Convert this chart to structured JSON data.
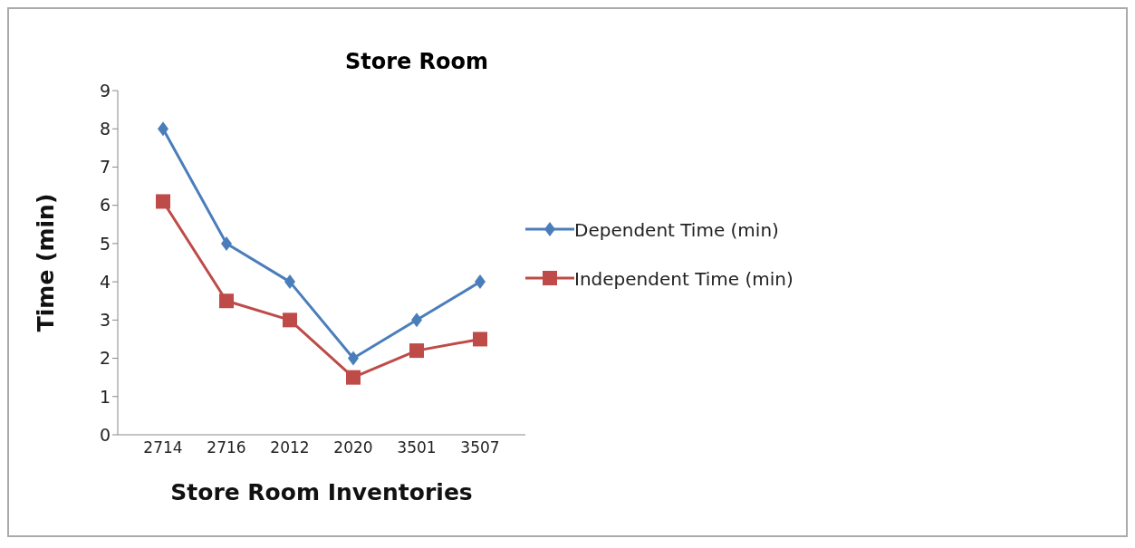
{
  "chart_data": {
    "type": "line",
    "title": "Store Room",
    "xlabel": "Store Room Inventories",
    "ylabel": "Time (min)",
    "categories": [
      "2714",
      "2716",
      "2012",
      "2020",
      "3501",
      "3507"
    ],
    "series": [
      {
        "name": "Dependent Time (min)",
        "color": "#4a7ebb",
        "marker": "diamond",
        "values": [
          8,
          5,
          4,
          2,
          3,
          4
        ]
      },
      {
        "name": "Independent Time (min)",
        "color": "#be4b48",
        "marker": "square",
        "values": [
          6.1,
          3.5,
          3,
          1.5,
          2.2,
          2.5
        ]
      }
    ],
    "ylim": [
      0,
      9
    ],
    "yticks": [
      0,
      1,
      2,
      3,
      4,
      5,
      6,
      7,
      8,
      9
    ],
    "grid": false,
    "legend": "right",
    "line_style": "solid"
  }
}
